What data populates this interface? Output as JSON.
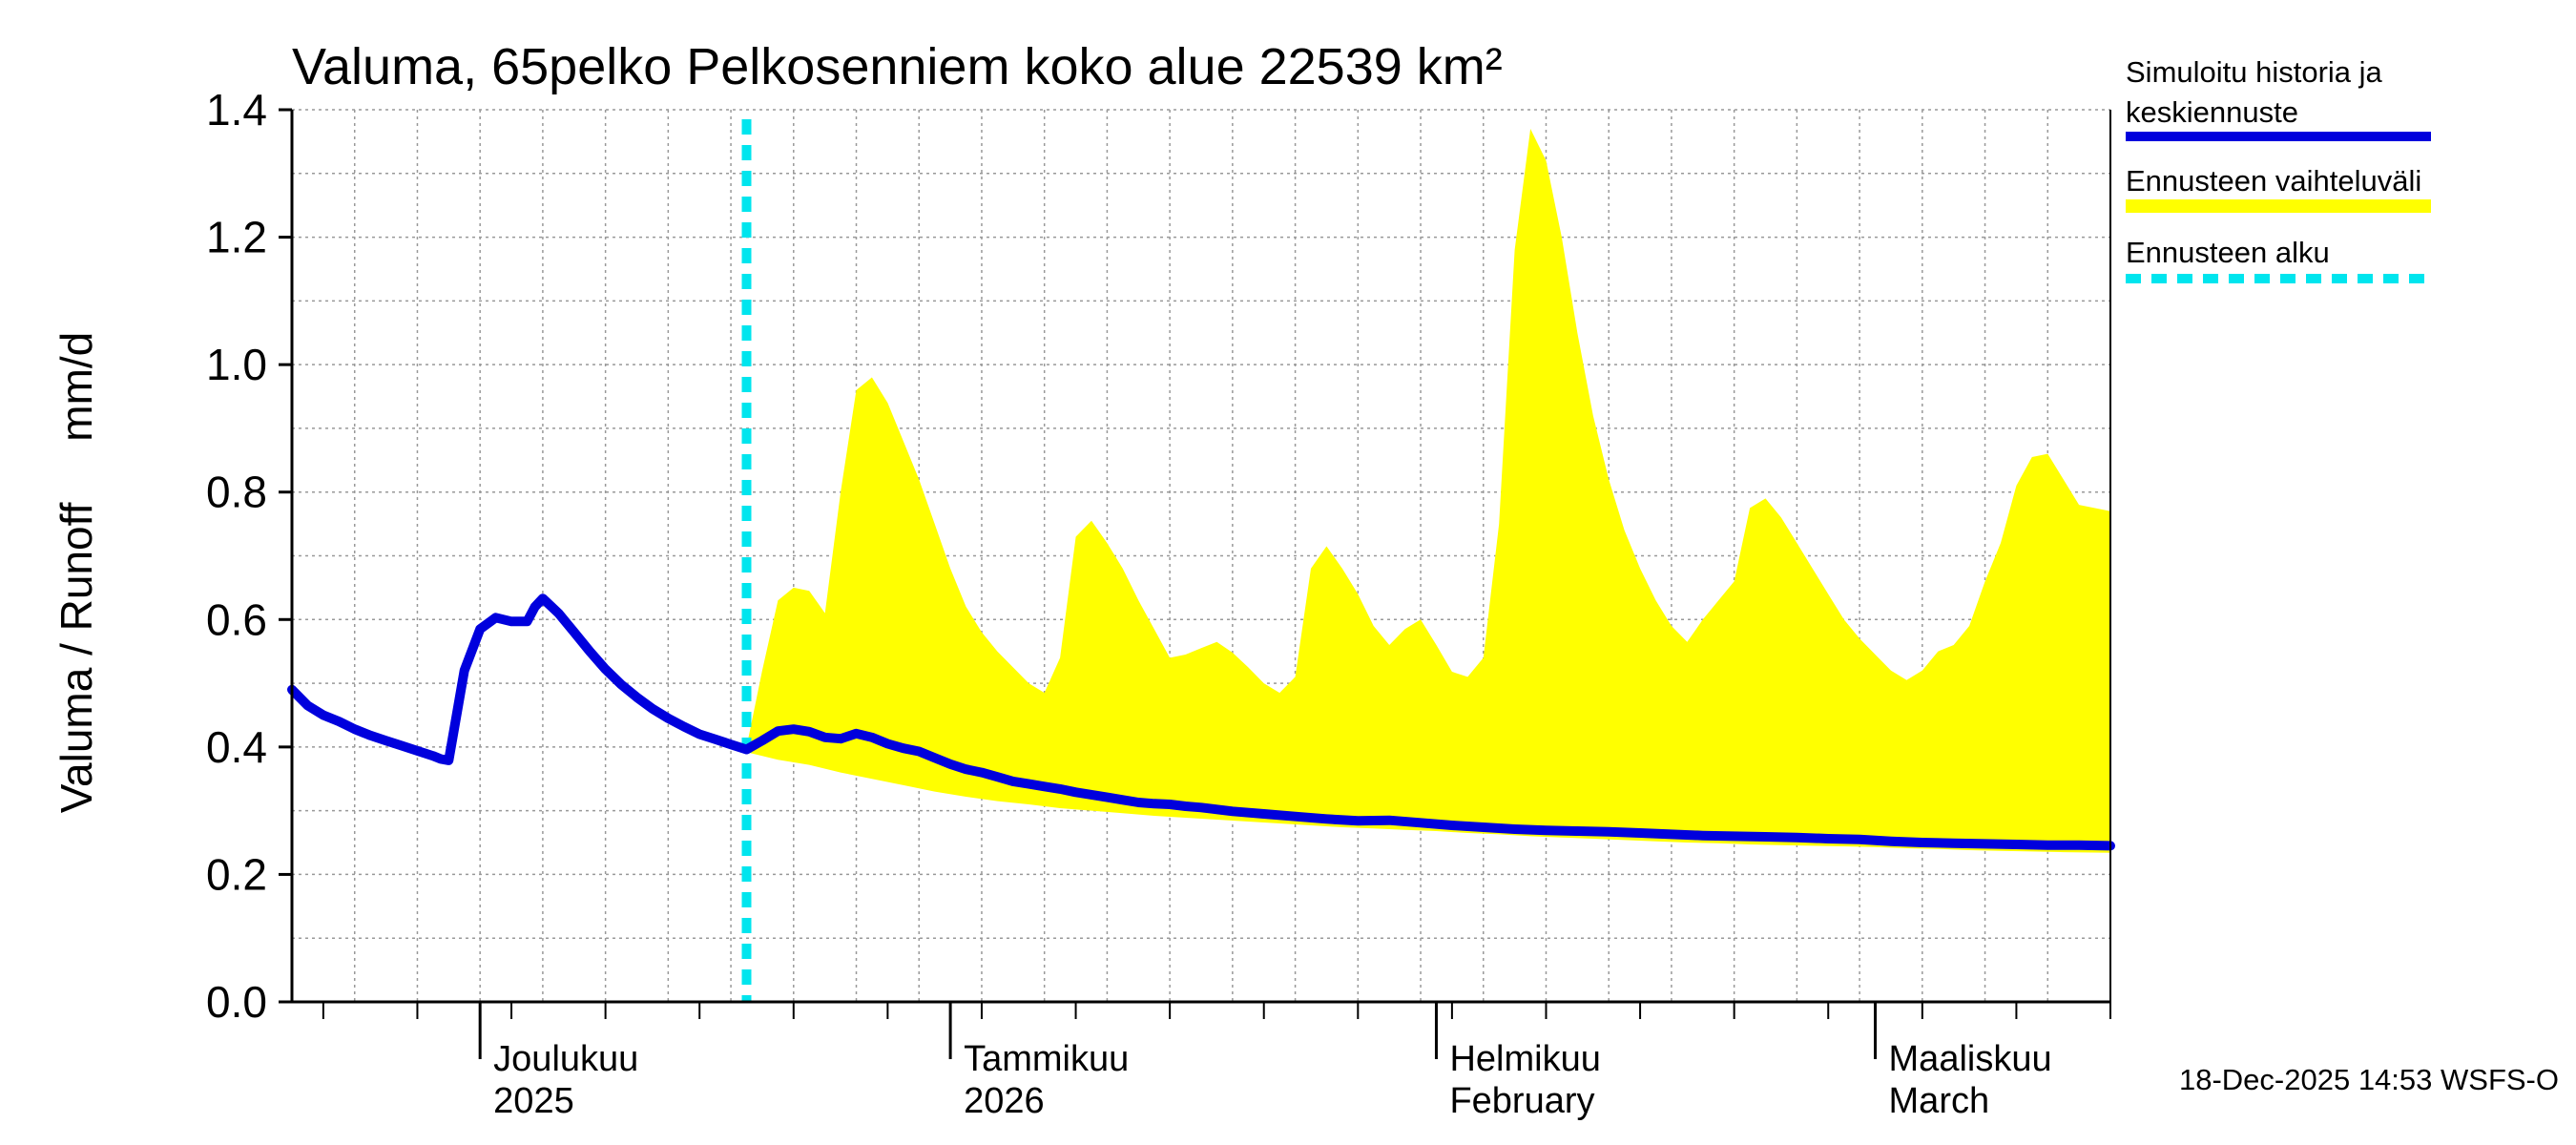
{
  "chart_data": {
    "type": "area",
    "title": "Valuma, 65pelko Pelkosenniem koko alue 22539 km²",
    "ylabel": "Valuma / Runoff     mm/d",
    "xlabel": "",
    "ylim": [
      0,
      1.4
    ],
    "yticks": [
      "0.0",
      "0.2",
      "0.4",
      "0.6",
      "0.8",
      "1.0",
      "1.2",
      "1.4"
    ],
    "x_range_days": [
      0,
      116
    ],
    "forecast_start_day": 29,
    "month_labels": [
      {
        "day": 12,
        "line1": "Joulukuu",
        "line2": "2025"
      },
      {
        "day": 42,
        "line1": "Tammikuu",
        "line2": "2026"
      },
      {
        "day": 73,
        "line1": "Helmikuu",
        "line2": "February"
      },
      {
        "day": 101,
        "line1": "Maaliskuu",
        "line2": "March"
      }
    ],
    "series": [
      {
        "name": "Simuloitu historia ja keskiennuste",
        "color": "#0000dd",
        "points": [
          [
            0,
            0.49
          ],
          [
            1,
            0.465
          ],
          [
            2,
            0.45
          ],
          [
            3,
            0.44
          ],
          [
            4,
            0.428
          ],
          [
            5,
            0.418
          ],
          [
            6,
            0.41
          ],
          [
            7,
            0.402
          ],
          [
            8,
            0.394
          ],
          [
            9,
            0.386
          ],
          [
            9.5,
            0.381
          ],
          [
            10,
            0.379
          ],
          [
            11,
            0.52
          ],
          [
            12,
            0.585
          ],
          [
            13,
            0.603
          ],
          [
            14,
            0.597
          ],
          [
            15,
            0.597
          ],
          [
            15.5,
            0.62
          ],
          [
            16,
            0.633
          ],
          [
            17,
            0.61
          ],
          [
            18,
            0.58
          ],
          [
            19,
            0.55
          ],
          [
            20,
            0.522
          ],
          [
            21,
            0.498
          ],
          [
            22,
            0.478
          ],
          [
            23,
            0.46
          ],
          [
            24,
            0.445
          ],
          [
            25,
            0.432
          ],
          [
            26,
            0.42
          ],
          [
            27,
            0.412
          ],
          [
            28,
            0.404
          ],
          [
            29,
            0.396
          ],
          [
            30,
            0.41
          ],
          [
            31,
            0.425
          ],
          [
            32,
            0.428
          ],
          [
            33,
            0.424
          ],
          [
            34,
            0.415
          ],
          [
            35,
            0.413
          ],
          [
            36,
            0.421
          ],
          [
            37,
            0.415
          ],
          [
            38,
            0.405
          ],
          [
            39,
            0.398
          ],
          [
            40,
            0.393
          ],
          [
            41,
            0.383
          ],
          [
            42,
            0.373
          ],
          [
            43,
            0.365
          ],
          [
            44,
            0.36
          ],
          [
            45,
            0.353
          ],
          [
            46,
            0.346
          ],
          [
            47,
            0.342
          ],
          [
            48,
            0.338
          ],
          [
            49,
            0.334
          ],
          [
            50,
            0.329
          ],
          [
            51,
            0.325
          ],
          [
            52,
            0.321
          ],
          [
            53,
            0.317
          ],
          [
            54,
            0.313
          ],
          [
            55,
            0.311
          ],
          [
            56,
            0.31
          ],
          [
            57,
            0.307
          ],
          [
            58,
            0.305
          ],
          [
            59,
            0.302
          ],
          [
            60,
            0.299
          ],
          [
            62,
            0.295
          ],
          [
            64,
            0.291
          ],
          [
            66,
            0.287
          ],
          [
            68,
            0.284
          ],
          [
            70,
            0.285
          ],
          [
            72,
            0.281
          ],
          [
            74,
            0.277
          ],
          [
            76,
            0.274
          ],
          [
            78,
            0.271
          ],
          [
            80,
            0.269
          ],
          [
            82,
            0.268
          ],
          [
            84,
            0.267
          ],
          [
            86,
            0.265
          ],
          [
            88,
            0.263
          ],
          [
            90,
            0.261
          ],
          [
            92,
            0.26
          ],
          [
            94,
            0.259
          ],
          [
            96,
            0.258
          ],
          [
            98,
            0.256
          ],
          [
            100,
            0.255
          ],
          [
            102,
            0.252
          ],
          [
            104,
            0.25
          ],
          [
            106,
            0.249
          ],
          [
            108,
            0.248
          ],
          [
            110,
            0.247
          ],
          [
            112,
            0.246
          ],
          [
            114,
            0.246
          ],
          [
            116,
            0.245
          ]
        ]
      }
    ],
    "band": {
      "name": "Ennusteen vaihteluväli",
      "color": "#ffff00",
      "upper": [
        [
          29,
          0.4
        ],
        [
          30,
          0.52
        ],
        [
          31,
          0.63
        ],
        [
          32,
          0.65
        ],
        [
          33,
          0.645
        ],
        [
          34,
          0.61
        ],
        [
          35,
          0.8
        ],
        [
          36,
          0.96
        ],
        [
          37,
          0.98
        ],
        [
          38,
          0.94
        ],
        [
          39,
          0.88
        ],
        [
          40,
          0.82
        ],
        [
          41,
          0.75
        ],
        [
          42,
          0.68
        ],
        [
          43,
          0.62
        ],
        [
          44,
          0.58
        ],
        [
          45,
          0.55
        ],
        [
          46,
          0.525
        ],
        [
          47,
          0.5
        ],
        [
          48,
          0.485
        ],
        [
          49,
          0.54
        ],
        [
          50,
          0.73
        ],
        [
          51,
          0.755
        ],
        [
          52,
          0.72
        ],
        [
          53,
          0.68
        ],
        [
          54,
          0.63
        ],
        [
          55,
          0.585
        ],
        [
          56,
          0.54
        ],
        [
          57,
          0.545
        ],
        [
          58,
          0.555
        ],
        [
          59,
          0.565
        ],
        [
          60,
          0.548
        ],
        [
          61,
          0.525
        ],
        [
          62,
          0.5
        ],
        [
          63,
          0.485
        ],
        [
          64,
          0.51
        ],
        [
          65,
          0.68
        ],
        [
          66,
          0.715
        ],
        [
          67,
          0.68
        ],
        [
          68,
          0.64
        ],
        [
          69,
          0.59
        ],
        [
          70,
          0.56
        ],
        [
          71,
          0.585
        ],
        [
          72,
          0.6
        ],
        [
          73,
          0.56
        ],
        [
          74,
          0.518
        ],
        [
          75,
          0.51
        ],
        [
          76,
          0.54
        ],
        [
          77,
          0.75
        ],
        [
          78,
          1.18
        ],
        [
          79,
          1.37
        ],
        [
          80,
          1.32
        ],
        [
          81,
          1.2
        ],
        [
          82,
          1.05
        ],
        [
          83,
          0.92
        ],
        [
          84,
          0.82
        ],
        [
          85,
          0.74
        ],
        [
          86,
          0.68
        ],
        [
          87,
          0.63
        ],
        [
          88,
          0.59
        ],
        [
          89,
          0.565
        ],
        [
          90,
          0.6
        ],
        [
          91,
          0.63
        ],
        [
          92,
          0.66
        ],
        [
          93,
          0.775
        ],
        [
          94,
          0.79
        ],
        [
          95,
          0.76
        ],
        [
          96,
          0.72
        ],
        [
          97,
          0.68
        ],
        [
          98,
          0.64
        ],
        [
          99,
          0.6
        ],
        [
          100,
          0.57
        ],
        [
          101,
          0.545
        ],
        [
          102,
          0.52
        ],
        [
          103,
          0.505
        ],
        [
          104,
          0.52
        ],
        [
          105,
          0.55
        ],
        [
          106,
          0.56
        ],
        [
          107,
          0.59
        ],
        [
          108,
          0.66
        ],
        [
          109,
          0.72
        ],
        [
          110,
          0.81
        ],
        [
          111,
          0.855
        ],
        [
          112,
          0.86
        ],
        [
          113,
          0.82
        ],
        [
          114,
          0.78
        ],
        [
          116,
          0.77
        ]
      ],
      "lower": [
        [
          29,
          0.392
        ],
        [
          31,
          0.38
        ],
        [
          33,
          0.372
        ],
        [
          35,
          0.36
        ],
        [
          37,
          0.35
        ],
        [
          39,
          0.34
        ],
        [
          41,
          0.33
        ],
        [
          43,
          0.322
        ],
        [
          45,
          0.315
        ],
        [
          47,
          0.31
        ],
        [
          49,
          0.304
        ],
        [
          51,
          0.3
        ],
        [
          53,
          0.296
        ],
        [
          55,
          0.292
        ],
        [
          57,
          0.289
        ],
        [
          59,
          0.286
        ],
        [
          61,
          0.283
        ],
        [
          63,
          0.28
        ],
        [
          65,
          0.277
        ],
        [
          67,
          0.274
        ],
        [
          69,
          0.272
        ],
        [
          71,
          0.27
        ],
        [
          73,
          0.268
        ],
        [
          75,
          0.265
        ],
        [
          77,
          0.263
        ],
        [
          79,
          0.26
        ],
        [
          81,
          0.258
        ],
        [
          83,
          0.256
        ],
        [
          85,
          0.254
        ],
        [
          87,
          0.252
        ],
        [
          89,
          0.25
        ],
        [
          91,
          0.249
        ],
        [
          93,
          0.247
        ],
        [
          95,
          0.246
        ],
        [
          97,
          0.245
        ],
        [
          99,
          0.244
        ],
        [
          101,
          0.243
        ],
        [
          103,
          0.241
        ],
        [
          105,
          0.24
        ],
        [
          107,
          0.238
        ],
        [
          109,
          0.237
        ],
        [
          111,
          0.236
        ],
        [
          113,
          0.235
        ],
        [
          116,
          0.234
        ]
      ]
    },
    "forecast_line": {
      "name": "Ennusteen alku",
      "color": "#00e5ee"
    },
    "grid": true,
    "legend": "right"
  },
  "legend": {
    "items": [
      {
        "label_lines": [
          "Simuloitu historia ja",
          "keskiennuste"
        ],
        "color": "#0000dd",
        "style": "line"
      },
      {
        "label_lines": [
          "Ennusteen vaihteluväli"
        ],
        "color": "#ffff00",
        "style": "band"
      },
      {
        "label_lines": [
          "Ennusteen alku"
        ],
        "color": "#00e5ee",
        "style": "dashed"
      }
    ]
  },
  "footer": {
    "timestamp": "18-Dec-2025 14:53 WSFS-O"
  }
}
